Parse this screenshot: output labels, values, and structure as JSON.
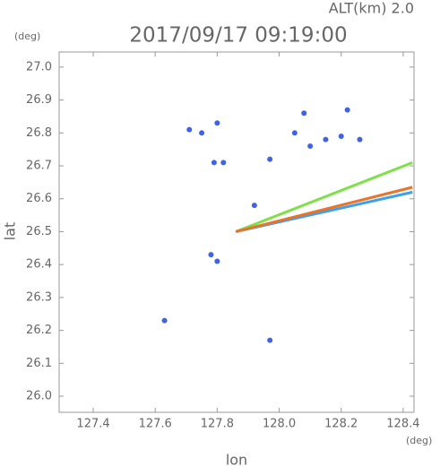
{
  "chart_data": {
    "type": "scatter",
    "title": "2017/09/17 09:19:00",
    "subtitle": "ALT(km) 2.0",
    "x_label": "lon",
    "y_label": "lat",
    "x_unit": "(deg)",
    "y_unit": "(deg)",
    "xlim": [
      127.29,
      128.435
    ],
    "ylim": [
      25.951,
      27.046
    ],
    "xticks": [
      127.4,
      127.6,
      127.8,
      {
        "value": 128,
        "label": "128.0"
      },
      128.2,
      128.4
    ],
    "yticks": [
      {
        "value": 26,
        "label": "26.0"
      },
      26.1,
      26.2,
      26.3,
      26.4,
      26.5,
      26.6,
      26.7,
      26.8,
      26.9,
      {
        "value": 27,
        "label": "27.0"
      }
    ],
    "series": [
      {
        "style": "point",
        "color": "#3f63e6",
        "x": [
          127.71,
          127.75,
          127.8,
          127.79,
          127.82,
          127.78,
          127.8,
          127.97,
          127.97,
          128.08,
          128.05,
          128.1,
          128.15,
          128.2,
          128.22,
          128.26,
          127.63,
          127.92
        ],
        "y": [
          26.81,
          26.8,
          26.83,
          26.71,
          26.71,
          26.43,
          26.41,
          26.72,
          26.17,
          26.86,
          26.8,
          26.76,
          26.78,
          26.79,
          26.87,
          26.78,
          26.23,
          26.58
        ]
      },
      {
        "style": "line",
        "color": "#7fe04a",
        "x": [
          127.86,
          128.43
        ],
        "y": [
          26.5,
          26.71
        ]
      },
      {
        "style": "line",
        "color": "#3aa0f0",
        "x": [
          127.86,
          128.43
        ],
        "y": [
          26.5,
          26.62
        ]
      },
      {
        "style": "line",
        "color": "#e8742a",
        "x": [
          127.86,
          128.43
        ],
        "y": [
          26.5,
          26.635
        ]
      }
    ]
  }
}
